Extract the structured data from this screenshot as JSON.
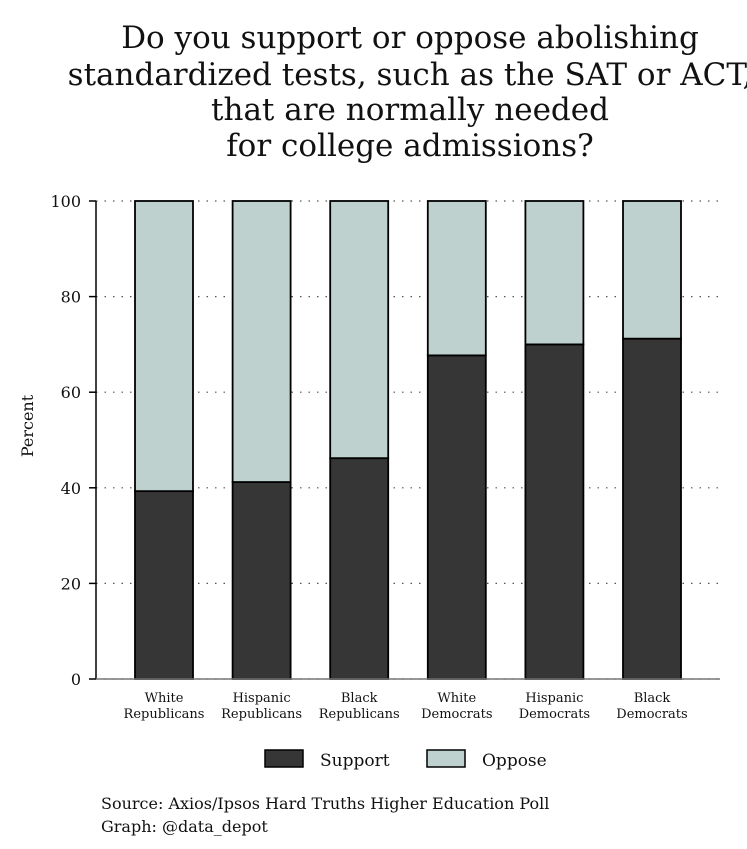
{
  "chart_data": {
    "type": "bar",
    "stacked": true,
    "title_lines": [
      "Do you support or oppose abolishing",
      "standardized tests, such as the SAT or ACT,",
      "that are normally needed",
      "for college admissions?"
    ],
    "categories": [
      [
        "White",
        "Republicans"
      ],
      [
        "Hispanic",
        "Republicans"
      ],
      [
        "Black",
        "Republicans"
      ],
      [
        "White",
        "Democrats"
      ],
      [
        "Hispanic",
        "Democrats"
      ],
      [
        "Black",
        "Democrats"
      ]
    ],
    "series": [
      {
        "name": "Support",
        "color": "#363636",
        "values": [
          39.3,
          41.2,
          46.2,
          67.7,
          70.0,
          71.2
        ]
      },
      {
        "name": "Oppose",
        "color": "#bfd1cf",
        "values": [
          60.7,
          58.8,
          53.8,
          32.3,
          30.0,
          28.8
        ]
      }
    ],
    "ylabel": "Percent",
    "xlabel": "",
    "ylim": [
      0,
      100
    ],
    "yticks": [
      0,
      20,
      40,
      60,
      80,
      100
    ],
    "grid": "dotted horizontal",
    "legend_position": "bottom"
  },
  "source": {
    "line1": "Source: Axios/Ipsos Hard Truths Higher Education Poll",
    "line2": "Graph: @data_depot"
  }
}
